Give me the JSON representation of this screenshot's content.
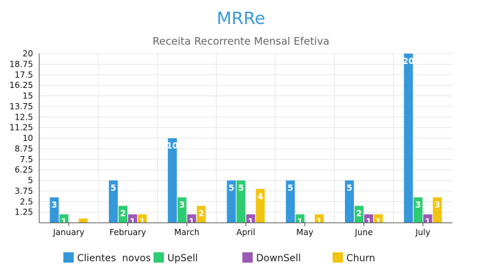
{
  "chart_data": {
    "type": "bar",
    "title": "MRRe",
    "subtitle": "Receita Recorrente Mensal Efetiva",
    "categories": [
      "January",
      "February",
      "March",
      "April",
      "May",
      "June",
      "July"
    ],
    "y_ticks": [
      "1.25",
      "2.5",
      "3.75",
      "5",
      "6.25",
      "7.5",
      "8.75",
      "10",
      "11.25",
      "12.5",
      "13.75",
      "15",
      "16.25",
      "17.5",
      "18.75",
      "20"
    ],
    "ylim": [
      0,
      20
    ],
    "grid": true,
    "legend_position": "bottom",
    "series": [
      {
        "name": "Clientes  novos",
        "color": "#3498db",
        "values": [
          3,
          5,
          10,
          5,
          5,
          5,
          20
        ]
      },
      {
        "name": "UpSell",
        "color": "#2ecc71",
        "values": [
          1,
          2,
          3,
          5,
          1,
          2,
          3
        ]
      },
      {
        "name": "DownSell",
        "color": "#9b59b6",
        "values": [
          0,
          1,
          1,
          1,
          0,
          1,
          1
        ]
      },
      {
        "name": "Churn",
        "color": "#f1c40f",
        "values": [
          0.5,
          1,
          2,
          4,
          1,
          1,
          3
        ]
      }
    ],
    "data_labels": [
      [
        "3",
        "1",
        "",
        ""
      ],
      [
        "5",
        "2",
        "1",
        "1"
      ],
      [
        "10",
        "3",
        "1",
        "2"
      ],
      [
        "5",
        "5",
        "1",
        "4"
      ],
      [
        "5",
        "1",
        "",
        "1"
      ],
      [
        "5",
        "2",
        "1",
        "1"
      ],
      [
        "20",
        "3",
        "1",
        "3"
      ]
    ]
  }
}
